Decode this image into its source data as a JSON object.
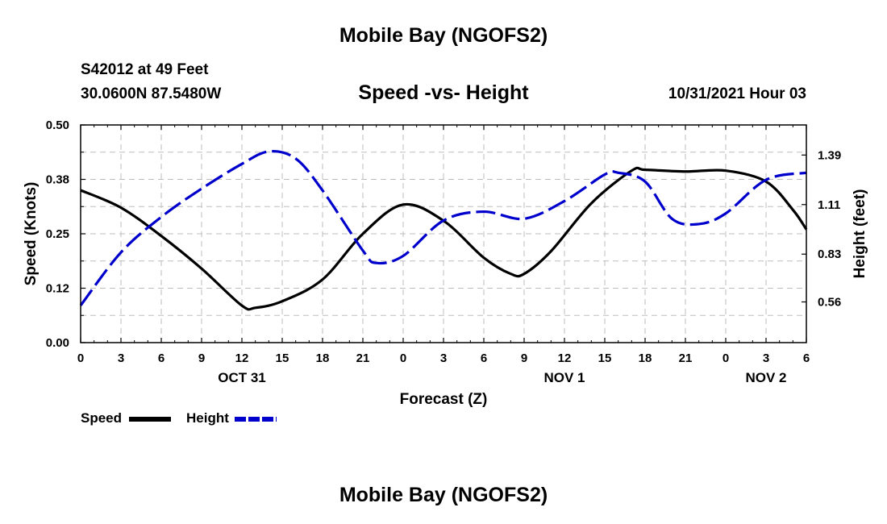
{
  "page": {
    "main_title": "Mobile Bay (NGOFS2)",
    "footer_title": "Mobile Bay (NGOFS2)",
    "station_line": "S42012 at 49 Feet",
    "coords_line": "30.0600N  87.5480W",
    "chart_title": "Speed -vs- Height",
    "timestamp": "10/31/2021 Hour 03"
  },
  "chart_data": {
    "type": "line",
    "title": "Speed -vs- Height",
    "xlabel": "Forecast (Z)",
    "ylabel_left": "Speed (Knots)",
    "ylabel_right": "Height (feet)",
    "x_range": [
      0,
      54
    ],
    "x_tick_labels": [
      "0",
      "3",
      "6",
      "9",
      "12",
      "15",
      "18",
      "21",
      "0",
      "3",
      "6",
      "9",
      "12",
      "15",
      "18",
      "21",
      "0",
      "3",
      "6"
    ],
    "date_labels": [
      {
        "label": "OCT 31",
        "x": 12
      },
      {
        "label": "NOV 1",
        "x": 36
      },
      {
        "label": "NOV 2",
        "x": 51
      }
    ],
    "y_left": {
      "min": 0.0,
      "max": 0.5,
      "ticks": [
        "0.00",
        "0.12",
        "0.25",
        "0.38",
        "0.50"
      ]
    },
    "y_right": {
      "min": 0.33,
      "max": 1.56,
      "ticks": [
        "0.56",
        "0.83",
        "1.11",
        "1.39"
      ]
    },
    "grid": true,
    "series": [
      {
        "name": "Speed",
        "axis": "left",
        "color": "#000000",
        "style": "solid",
        "x": [
          0,
          3,
          6,
          9,
          12,
          13,
          15,
          18,
          21,
          24,
          27,
          30,
          32,
          33,
          35,
          38,
          41,
          42,
          45,
          48,
          51,
          53,
          54
        ],
        "y": [
          0.35,
          0.31,
          0.245,
          0.17,
          0.085,
          0.08,
          0.095,
          0.145,
          0.25,
          0.317,
          0.28,
          0.195,
          0.158,
          0.158,
          0.21,
          0.32,
          0.395,
          0.397,
          0.393,
          0.395,
          0.37,
          0.305,
          0.26
        ]
      },
      {
        "name": "Height",
        "axis": "right",
        "color": "#0000cc",
        "style": "dashed",
        "x": [
          0,
          3,
          6,
          9,
          12,
          14,
          16,
          18,
          21,
          22,
          24,
          27,
          30,
          33,
          36,
          39,
          40,
          42,
          44,
          46,
          48,
          51,
          54
        ],
        "y": [
          0.54,
          0.84,
          1.04,
          1.2,
          1.34,
          1.41,
          1.37,
          1.19,
          0.85,
          0.78,
          0.82,
          1.02,
          1.07,
          1.03,
          1.13,
          1.28,
          1.29,
          1.24,
          1.03,
          1.0,
          1.06,
          1.25,
          1.29
        ]
      }
    ]
  }
}
